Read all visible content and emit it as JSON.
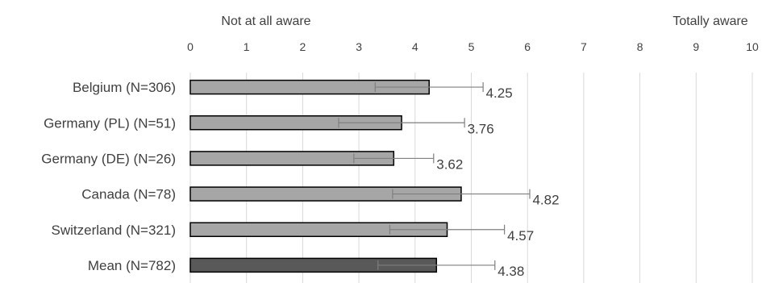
{
  "chart_data": {
    "type": "bar",
    "orientation": "horizontal",
    "top_labels": {
      "left": "Not at all aware",
      "right": "Totally aware"
    },
    "xlim": [
      0,
      10
    ],
    "x_ticks": [
      "0",
      "1",
      "2",
      "3",
      "4",
      "5",
      "6",
      "7",
      "8",
      "9",
      "10"
    ],
    "grid": true,
    "categories": [
      "Belgium (N=306)",
      "Germany (PL) (N=51)",
      "Germany (DE) (N=26)",
      "Canada (N=78)",
      "Switzerland (N=321)",
      "Mean (N=782)"
    ],
    "values": [
      4.25,
      3.76,
      3.62,
      4.82,
      4.57,
      4.38
    ],
    "value_labels": [
      "4.25",
      "3.76",
      "3.62",
      "4.82",
      "4.57",
      "4.38"
    ],
    "error": [
      0.96,
      1.12,
      0.71,
      1.22,
      1.02,
      1.04
    ],
    "colors": {
      "bar": "#a6a6a6",
      "mean_bar": "#595959",
      "bar_border": "#000000",
      "error_bar": "#7f7f7f",
      "grid": "#d9d9d9",
      "text": "#404040"
    }
  }
}
